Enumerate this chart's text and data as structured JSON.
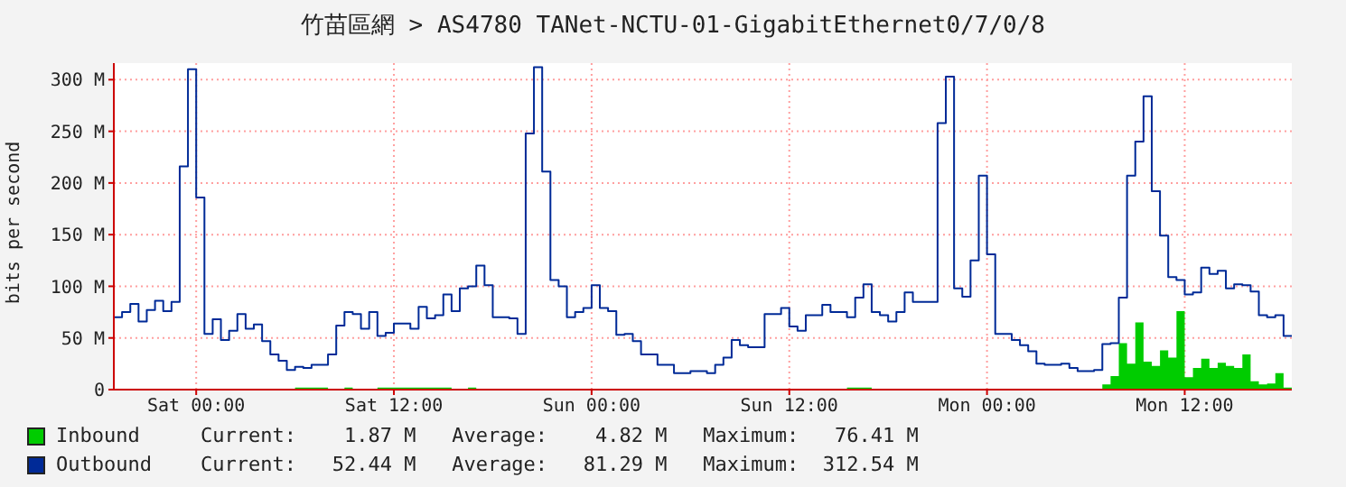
{
  "chart_data": {
    "type": "step",
    "title": "竹苗區網 > AS4780 TANet-NCTU-01-GigabitEthernet0/7/0/8",
    "ylabel": "bits per second",
    "categories": [
      null,
      null,
      null,
      null,
      null,
      null,
      null,
      null,
      null,
      null,
      "Sat 00:00",
      null,
      null,
      null,
      null,
      null,
      null,
      null,
      null,
      null,
      null,
      null,
      null,
      null,
      null,
      null,
      null,
      null,
      null,
      null,
      null,
      null,
      null,
      null,
      "Sat 12:00",
      null,
      null,
      null,
      null,
      null,
      null,
      null,
      null,
      null,
      null,
      null,
      null,
      null,
      null,
      null,
      null,
      null,
      null,
      null,
      null,
      null,
      null,
      null,
      "Sun 00:00",
      null,
      null,
      null,
      null,
      null,
      null,
      null,
      null,
      null,
      null,
      null,
      null,
      null,
      null,
      null,
      null,
      null,
      null,
      null,
      null,
      null,
      null,
      null,
      "Sun 12:00",
      null,
      null,
      null,
      null,
      null,
      null,
      null,
      null,
      null,
      null,
      null,
      null,
      null,
      null,
      null,
      null,
      null,
      null,
      null,
      null,
      null,
      null,
      null,
      "Mon 00:00",
      null,
      null,
      null,
      null,
      null,
      null,
      null,
      null,
      null,
      null,
      null,
      null,
      null,
      null,
      null,
      null,
      null,
      null,
      null,
      null,
      null,
      null,
      null,
      "Mon 12:00",
      null,
      null,
      null,
      null,
      null,
      null,
      null,
      null,
      null,
      null,
      null,
      null,
      null
    ],
    "ylim": [
      0,
      316
    ],
    "yticks": [
      {
        "value": 0,
        "label": "0"
      },
      {
        "value": 50,
        "label": "50 M"
      },
      {
        "value": 100,
        "label": "100 M"
      },
      {
        "value": 150,
        "label": "150 M"
      },
      {
        "value": 200,
        "label": "200 M"
      },
      {
        "value": 250,
        "label": "250 M"
      },
      {
        "value": 300,
        "label": "300 M"
      }
    ],
    "grid": true,
    "legend": "bottom",
    "annotations": [
      "Current:    1.87 M   Average:    4.82 M   Maximum:   76.41 M",
      "Current:   52.44 M   Average:   81.29 M   Maximum:  312.54 M"
    ],
    "series": [
      {
        "name": "Inbound",
        "type": "area",
        "color": "#00cc00",
        "values": [
          0,
          0,
          0,
          0,
          0,
          0,
          0,
          0,
          0,
          0,
          0,
          0,
          0,
          0,
          0,
          0,
          0,
          0,
          0,
          0,
          0,
          0,
          2,
          2,
          2,
          2,
          0,
          0,
          2,
          0,
          0,
          0,
          2,
          2,
          2,
          2,
          2,
          2,
          2,
          2,
          2,
          0,
          0,
          2,
          0,
          0,
          0,
          0,
          0,
          0,
          0,
          0,
          0,
          0,
          0,
          0,
          0,
          0,
          0,
          0,
          0,
          0,
          0,
          0,
          0,
          0,
          0,
          0,
          0,
          0,
          0,
          0,
          0,
          0,
          0,
          0,
          0,
          0,
          0,
          0,
          0,
          0,
          0,
          0,
          0,
          0,
          0,
          0,
          0,
          2,
          2,
          2,
          0,
          0,
          0,
          0,
          0,
          0,
          0,
          0,
          0,
          0,
          0,
          0,
          0,
          0,
          0,
          0,
          0,
          0,
          0,
          0,
          0,
          0,
          0,
          0,
          0,
          0,
          0,
          0,
          5,
          13,
          45,
          25,
          65,
          27,
          23,
          38,
          31,
          76,
          12,
          21,
          30,
          21,
          26,
          23,
          21,
          34,
          8,
          5,
          6,
          16,
          2,
          2
        ]
      },
      {
        "name": "Outbound",
        "color": "#002a97",
        "values": [
          70,
          75,
          83,
          66,
          77,
          86,
          76,
          85,
          216,
          310,
          186,
          54,
          68,
          48,
          57,
          73,
          59,
          63,
          47,
          34,
          28,
          19,
          22,
          21,
          24,
          24,
          34,
          62,
          75,
          73,
          59,
          75,
          52,
          55,
          64,
          64,
          59,
          80,
          69,
          72,
          92,
          76,
          98,
          100,
          120,
          101,
          70,
          70,
          69,
          54,
          248,
          312,
          211,
          106,
          100,
          70,
          75,
          79,
          101,
          79,
          76,
          53,
          54,
          47,
          34,
          34,
          24,
          24,
          16,
          16,
          18,
          18,
          16,
          24,
          31,
          48,
          43,
          41,
          41,
          73,
          73,
          79,
          61,
          57,
          72,
          72,
          82,
          75,
          75,
          70,
          89,
          102,
          75,
          72,
          66,
          75,
          94,
          85,
          85,
          85,
          258,
          303,
          98,
          90,
          125,
          207,
          131,
          54,
          54,
          48,
          43,
          37,
          25,
          24,
          24,
          25,
          21,
          18,
          18,
          19,
          44,
          45,
          89,
          207,
          240,
          284,
          192,
          149,
          109,
          106,
          92,
          94,
          118,
          112,
          115,
          98,
          102,
          101,
          95,
          72,
          70,
          72,
          52,
          52
        ]
      }
    ]
  }
}
